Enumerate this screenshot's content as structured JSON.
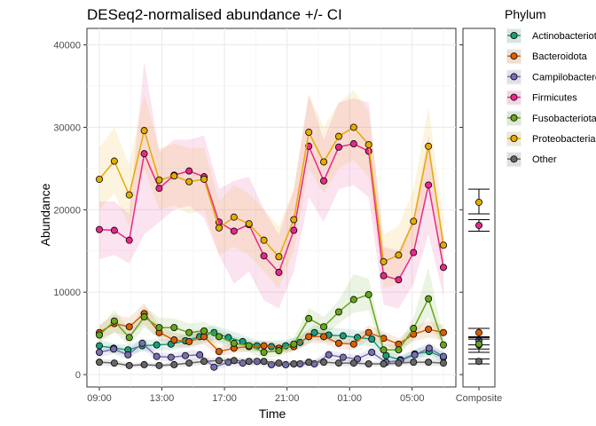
{
  "chart_data": {
    "type": "line",
    "title": "DESeq2-normalised abundance +/- CI",
    "xlabel": "Time",
    "ylabel": "Abundance",
    "ylim": [
      -1500,
      42000
    ],
    "yticks": [
      0,
      10000,
      20000,
      30000,
      40000
    ],
    "ytick_labels": [
      "0",
      "10000",
      "20000",
      "30000",
      "40000"
    ],
    "x_index_range": [
      0,
      22
    ],
    "x_tick_labels": [
      "09:00",
      "13:00",
      "17:00",
      "21:00",
      "01:00",
      "05:00"
    ],
    "composite_label": "Composite",
    "grid": true,
    "legend_title": "Phylum",
    "legend_placement": "right",
    "series": [
      {
        "name": "Actinobacteriota",
        "color": "#1B9E77",
        "values": [
          3500,
          3200,
          3000,
          3500,
          3600,
          3700,
          4100,
          4600,
          5100,
          4500,
          4000,
          3500,
          3400,
          3500,
          3900,
          5100,
          4800,
          4700,
          4500,
          4300,
          2300,
          1800,
          2500,
          2800,
          2100
        ],
        "lower": [
          2800,
          2600,
          2400,
          2800,
          2900,
          3000,
          3300,
          3700,
          4200,
          3600,
          3200,
          2800,
          2700,
          2800,
          3100,
          4200,
          3900,
          3800,
          3600,
          3400,
          1700,
          1300,
          1900,
          2100,
          1500
        ],
        "upper": [
          4200,
          3800,
          3600,
          4200,
          4300,
          4400,
          4900,
          5500,
          6000,
          5400,
          4800,
          4200,
          4100,
          4200,
          4700,
          6000,
          5700,
          5600,
          5400,
          5200,
          2900,
          2300,
          3100,
          3500,
          2700
        ],
        "composite": {
          "y": 3600,
          "lo": 2700,
          "hi": 4500
        }
      },
      {
        "name": "Bacteroidota",
        "color": "#D95F02",
        "values": [
          5100,
          6200,
          5800,
          7400,
          5100,
          4200,
          4000,
          4600,
          2800,
          3200,
          3400,
          3500,
          3200,
          3400,
          4600,
          4600,
          3800,
          3700,
          5100,
          4400,
          3700,
          4900,
          5500,
          5100
        ],
        "lower": [
          4200,
          5100,
          4700,
          6100,
          4200,
          3400,
          3200,
          3700,
          2200,
          2600,
          2800,
          2900,
          2600,
          2800,
          3800,
          3800,
          3100,
          3000,
          4200,
          3600,
          3000,
          4000,
          4500,
          4200
        ],
        "upper": [
          6000,
          7300,
          6900,
          8700,
          6000,
          5000,
          4800,
          5500,
          3400,
          3800,
          4000,
          4100,
          3800,
          4000,
          5400,
          5400,
          4500,
          4400,
          6000,
          5200,
          4400,
          5800,
          6500,
          6000
        ],
        "composite": {
          "y": 5100,
          "lo": 4500,
          "hi": 5600
        }
      },
      {
        "name": "Campilobacterota",
        "color": "#7570B3",
        "values": [
          2700,
          3100,
          2400,
          3800,
          2200,
          2100,
          2300,
          2400,
          900,
          1500,
          1400,
          1600,
          1200,
          1200,
          1300,
          1300,
          2400,
          2100,
          1900,
          2700,
          1500,
          1700,
          2400,
          3200,
          2200
        ],
        "lower": [
          2100,
          2500,
          1800,
          3100,
          1700,
          1600,
          1700,
          1800,
          500,
          1000,
          900,
          1100,
          800,
          800,
          900,
          900,
          1800,
          1600,
          1400,
          2100,
          1100,
          1200,
          1800,
          2500,
          1600
        ],
        "upper": [
          3300,
          3700,
          3000,
          4500,
          2700,
          2600,
          2900,
          3000,
          1300,
          2000,
          1900,
          2100,
          1600,
          1600,
          1700,
          1700,
          3000,
          2600,
          2400,
          3300,
          1900,
          2200,
          3000,
          3900,
          2800
        ],
        "composite": {
          "y": 4100,
          "lo": 3600,
          "hi": 4600
        }
      },
      {
        "name": "Firmicutes",
        "color": "#E7298A",
        "values": [
          17600,
          17500,
          16300,
          26800,
          22600,
          24200,
          24700,
          24000,
          18500,
          17400,
          18200,
          14400,
          12400,
          17500,
          27700,
          23500,
          27600,
          28000,
          27100,
          12000,
          11500,
          14800,
          23000,
          13000
        ],
        "lower": [
          14000,
          14500,
          13500,
          17000,
          18500,
          20000,
          20500,
          19000,
          14500,
          11000,
          12500,
          9000,
          8000,
          12500,
          21500,
          18500,
          22500,
          23000,
          21500,
          8500,
          8000,
          11000,
          17000,
          9500
        ],
        "upper": [
          21000,
          21000,
          19500,
          38000,
          27000,
          28500,
          28500,
          29000,
          22500,
          23500,
          24000,
          20000,
          17000,
          22500,
          34000,
          28500,
          33000,
          33500,
          33000,
          15500,
          15000,
          19000,
          29000,
          16500
        ],
        "composite": {
          "y": 18100,
          "lo": 17400,
          "hi": 18800
        }
      },
      {
        "name": "Fusobacteriota",
        "color": "#66A61E",
        "values": [
          4800,
          6500,
          4500,
          7000,
          5700,
          5700,
          5100,
          5300,
          4600,
          3800,
          3500,
          2700,
          2900,
          3700,
          6800,
          5800,
          7600,
          9100,
          9700,
          3000,
          3000,
          5600,
          9200,
          3600
        ],
        "lower": [
          3800,
          5200,
          3500,
          5700,
          4500,
          4600,
          4000,
          4200,
          3700,
          3000,
          2700,
          2000,
          2200,
          2900,
          5500,
          4600,
          6200,
          7500,
          7800,
          2300,
          2300,
          4300,
          7000,
          2800
        ],
        "upper": [
          5800,
          7800,
          5500,
          8300,
          6900,
          6800,
          6200,
          6400,
          5500,
          4600,
          4300,
          3400,
          3600,
          4500,
          8100,
          7000,
          9000,
          12200,
          11600,
          3700,
          3700,
          6900,
          13000,
          4400
        ],
        "composite": {
          "y": 3700,
          "lo": 3100,
          "hi": 4300
        }
      },
      {
        "name": "Proteobacteria",
        "color": "#E6AB02",
        "values": [
          23700,
          25900,
          21800,
          29600,
          23600,
          24100,
          23400,
          23700,
          17800,
          19100,
          18300,
          16300,
          14300,
          18800,
          29400,
          25800,
          28900,
          30000,
          27900,
          13700,
          14500,
          18600,
          27700,
          15700
        ],
        "lower": [
          20000,
          22000,
          18000,
          25000,
          20000,
          20500,
          19500,
          20000,
          14500,
          15500,
          14500,
          12500,
          10500,
          15000,
          25000,
          22000,
          25000,
          26000,
          24000,
          10500,
          11000,
          15000,
          23000,
          12500
        ],
        "upper": [
          27500,
          30000,
          25500,
          34000,
          27500,
          28000,
          27500,
          27500,
          21000,
          23000,
          22000,
          20000,
          18000,
          22500,
          34000,
          30000,
          33000,
          34500,
          32000,
          17000,
          18000,
          22500,
          32500,
          19000
        ],
        "composite": {
          "y": 20900,
          "lo": 19500,
          "hi": 22500
        }
      },
      {
        "name": "Other",
        "color": "#666666",
        "values": [
          1500,
          1400,
          1100,
          1200,
          1100,
          1200,
          1400,
          1600,
          1700,
          1700,
          1600,
          1600,
          1400,
          1300,
          1500,
          1500,
          1400,
          1400,
          1300,
          1300,
          1400,
          1500,
          1500,
          1400
        ],
        "lower": [
          1100,
          1000,
          800,
          900,
          800,
          900,
          1000,
          1200,
          1300,
          1300,
          1200,
          1200,
          1000,
          1000,
          1100,
          1100,
          1000,
          1000,
          1000,
          1000,
          1100,
          1100,
          1100,
          1000
        ],
        "upper": [
          1900,
          1800,
          1400,
          1500,
          1400,
          1500,
          1800,
          2000,
          2100,
          2100,
          2000,
          2000,
          1800,
          1600,
          1900,
          1900,
          1800,
          1800,
          1600,
          1600,
          1700,
          1900,
          1900,
          1800
        ],
        "composite": {
          "y": 1600,
          "lo": 1300,
          "hi": 1900
        }
      }
    ]
  }
}
